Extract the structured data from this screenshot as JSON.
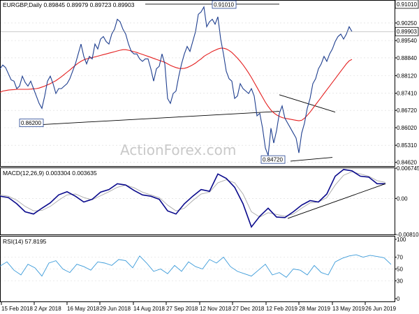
{
  "colors": {
    "price": "#1f3f8f",
    "ma": "#e41f1f",
    "trendline": "#000000",
    "macd": "#0a0a8c",
    "signal": "#a8a8a8",
    "macd_trendline": "#000000",
    "rsi": "#3a9ad9",
    "grid": "#d9d9d9",
    "frame": "#000000",
    "watermark": "#c9c9c9"
  },
  "chart_data": [
    {
      "type": "line",
      "panel": "price",
      "symbol": "EURGBP",
      "timeframe": "Daily",
      "title": "EURGBP,Daily",
      "ohlc_values": [
        "0.89845",
        "0.89979",
        "0.89723",
        "0.89903"
      ],
      "current_price": 0.89903,
      "current_price_label": "0.89903",
      "watermark": "ActionForex.com",
      "ylim": [
        0.8447,
        0.9115
      ],
      "y_ticks": [
        0.8462,
        0.8531,
        0.8602,
        0.8672,
        0.8741,
        0.8812,
        0.8884,
        0.8954,
        0.9025
      ],
      "y_tick_labels": [
        "0.84620",
        "0.85310",
        "0.86020",
        "0.86720",
        "0.87410",
        "0.88120",
        "0.88840",
        "0.89540",
        "0.90250"
      ],
      "x": [
        0,
        4,
        8,
        12,
        16,
        20,
        24,
        28,
        32,
        36,
        40,
        44,
        48,
        52,
        56,
        60,
        64,
        68,
        72,
        76,
        80,
        84,
        88,
        92,
        96,
        100,
        104,
        108,
        112,
        116,
        120,
        124,
        128,
        132,
        136,
        140,
        144,
        148,
        152,
        156,
        160,
        164,
        168,
        172,
        176,
        180,
        184,
        188,
        192,
        196,
        200,
        204,
        208,
        212,
        216,
        220,
        224,
        228,
        232,
        236,
        240,
        244,
        248,
        252,
        256,
        260,
        264,
        268,
        272,
        276,
        280,
        284,
        288,
        292,
        296,
        300,
        304,
        308,
        312,
        316,
        320,
        324,
        328,
        332,
        336,
        340,
        344,
        348,
        352,
        356,
        360,
        364,
        368,
        372,
        376,
        380,
        384,
        388,
        392,
        396,
        400,
        404,
        408,
        412,
        416,
        420,
        424,
        428,
        432,
        436,
        440,
        444,
        448,
        452,
        456,
        460,
        464,
        468,
        472,
        476,
        480,
        484,
        488,
        492,
        496,
        500,
        504
      ],
      "close": [
        0.884,
        0.8855,
        0.8845,
        0.882,
        0.8795,
        0.879,
        0.876,
        0.877,
        0.881,
        0.8785,
        0.877,
        0.879,
        0.876,
        0.873,
        0.87,
        0.868,
        0.873,
        0.879,
        0.881,
        0.878,
        0.874,
        0.876,
        0.876,
        0.877,
        0.878,
        0.88,
        0.883,
        0.886,
        0.89,
        0.894,
        0.889,
        0.886,
        0.889,
        0.888,
        0.894,
        0.892,
        0.896,
        0.897,
        0.895,
        0.894,
        0.898,
        0.9,
        0.904,
        0.903,
        0.9,
        0.898,
        0.894,
        0.891,
        0.89,
        0.89,
        0.888,
        0.887,
        0.888,
        0.888,
        0.884,
        0.879,
        0.884,
        0.885,
        0.89,
        0.886,
        0.872,
        0.87,
        0.874,
        0.875,
        0.881,
        0.886,
        0.89,
        0.893,
        0.891,
        0.895,
        0.899,
        0.906,
        0.907,
        0.909,
        0.901,
        0.903,
        0.904,
        0.902,
        0.905,
        0.896,
        0.89,
        0.883,
        0.88,
        0.879,
        0.872,
        0.873,
        0.878,
        0.876,
        0.875,
        0.874,
        0.876,
        0.873,
        0.865,
        0.866,
        0.86,
        0.852,
        0.849,
        0.86,
        0.854,
        0.859,
        0.866,
        0.869,
        0.864,
        0.862,
        0.86,
        0.858,
        0.856,
        0.85,
        0.858,
        0.862,
        0.868,
        0.872,
        0.878,
        0.88,
        0.884,
        0.886,
        0.889,
        0.887,
        0.89,
        0.892,
        0.895,
        0.897,
        0.898,
        0.896,
        0.898,
        0.901,
        0.899
      ],
      "ma": [
        0.8745,
        0.875,
        0.8752,
        0.8754,
        0.8755,
        0.8756,
        0.8757,
        0.8757,
        0.8757,
        0.8757,
        0.8757,
        0.8758,
        0.8759,
        0.876,
        0.8762,
        0.8766,
        0.877,
        0.8775,
        0.878,
        0.8786,
        0.8792,
        0.88,
        0.8808,
        0.8817,
        0.8826,
        0.8835,
        0.8845,
        0.8854,
        0.8863,
        0.887,
        0.8876,
        0.888,
        0.8883,
        0.8885,
        0.8888,
        0.8891,
        0.8894,
        0.8897,
        0.89,
        0.8903,
        0.8906,
        0.8909,
        0.8912,
        0.8915,
        0.8917,
        0.8917,
        0.8915,
        0.8912,
        0.8909,
        0.8906,
        0.8902,
        0.8898,
        0.8894,
        0.889,
        0.8886,
        0.8882,
        0.8878,
        0.8874,
        0.887,
        0.8866,
        0.886,
        0.8854,
        0.8849,
        0.8845,
        0.8842,
        0.8841,
        0.8842,
        0.8845,
        0.885,
        0.8856,
        0.8863,
        0.8872,
        0.888,
        0.889,
        0.8897,
        0.8903,
        0.891,
        0.8915,
        0.892,
        0.8923,
        0.8923,
        0.892,
        0.8914,
        0.8906,
        0.8895,
        0.8883,
        0.887,
        0.8856,
        0.884,
        0.8823,
        0.8805,
        0.8785,
        0.8765,
        0.8745,
        0.8725,
        0.8705,
        0.8688,
        0.8673,
        0.8662,
        0.8654,
        0.8648,
        0.8643,
        0.864,
        0.8638,
        0.8636,
        0.8634,
        0.8632,
        0.863,
        0.8632,
        0.864,
        0.8652,
        0.8665,
        0.868,
        0.8695,
        0.871,
        0.8725,
        0.874,
        0.8755,
        0.877,
        0.8785,
        0.88,
        0.8815,
        0.883,
        0.8845,
        0.886,
        0.8872,
        0.8878
      ],
      "annotations": [
        {
          "label": "0.91010",
          "value": 0.9101
        },
        {
          "label": "0.86200",
          "value": 0.862
        },
        {
          "label": "0.84720",
          "value": 0.8472
        }
      ],
      "lines": [
        {
          "kind": "support",
          "x": [
            62,
            400
          ],
          "y": [
            0.8615,
            0.8668
          ]
        },
        {
          "kind": "resistance",
          "x": [
            208,
            400
          ],
          "y": [
            0.9101,
            0.9101
          ]
        },
        {
          "kind": "triangle-upper",
          "x": [
            400,
            480
          ],
          "y": [
            0.8735,
            0.8665
          ]
        },
        {
          "kind": "triangle-lower",
          "x": [
            416,
            476
          ],
          "y": [
            0.8467,
            0.8482
          ]
        }
      ]
    },
    {
      "type": "line",
      "panel": "macd",
      "title": "MACD(12,26,9)",
      "values_label": [
        "0.003304",
        "0.003635"
      ],
      "y_tick_labels": [
        "0.006745",
        "0.00",
        "-0.008109"
      ],
      "ylim": [
        -0.0081,
        0.0068
      ],
      "zero_line": 0,
      "x": [
        0,
        12,
        24,
        36,
        48,
        60,
        72,
        84,
        96,
        108,
        120,
        132,
        144,
        156,
        168,
        180,
        192,
        204,
        216,
        228,
        240,
        252,
        264,
        276,
        288,
        300,
        312,
        324,
        336,
        348,
        360,
        372,
        384,
        396,
        408,
        420,
        432,
        444,
        456,
        468,
        480,
        492,
        504,
        516,
        528,
        540,
        552
      ],
      "macd": [
        0.0005,
        0.0002,
        -0.0012,
        -0.003,
        -0.0035,
        -0.0022,
        -0.001,
        0.0008,
        0.0015,
        0.0005,
        -0.0008,
        -0.0002,
        0.0014,
        0.002,
        0.0033,
        0.003,
        0.0018,
        0.0008,
        0.0005,
        -0.0002,
        -0.0028,
        -0.0035,
        -0.0012,
        0.0005,
        0.002,
        0.0016,
        0.0055,
        0.0045,
        0.0025,
        -0.0012,
        -0.0064,
        -0.004,
        -0.0022,
        -0.0042,
        -0.0043,
        -0.003,
        -0.0015,
        -0.0005,
        -0.0008,
        0.001,
        0.005,
        0.0065,
        0.0062,
        0.005,
        0.0048,
        0.0033,
        0.0033
      ],
      "signal": [
        0.0008,
        0.0005,
        -0.0004,
        -0.0018,
        -0.0028,
        -0.0027,
        -0.0018,
        -0.0004,
        0.0008,
        0.001,
        0.0002,
        -0.0003,
        0.0006,
        0.0015,
        0.0025,
        0.003,
        0.0024,
        0.0014,
        0.0008,
        0.0002,
        -0.0015,
        -0.0028,
        -0.0022,
        -0.0005,
        0.001,
        0.0014,
        0.0035,
        0.0042,
        0.0035,
        0.001,
        -0.003,
        -0.0042,
        -0.0032,
        -0.0036,
        -0.004,
        -0.0035,
        -0.0022,
        -0.001,
        -0.0008,
        0.0002,
        0.003,
        0.0052,
        0.006,
        0.0055,
        0.005,
        0.004,
        0.0036
      ],
      "lines": [
        {
          "kind": "trendline",
          "x": [
            412,
            552
          ],
          "y": [
            -0.0045,
            0.0033
          ]
        }
      ]
    },
    {
      "type": "line",
      "panel": "rsi",
      "title": "RSI(14)",
      "value_label": "57.8195",
      "y_tick_labels": [
        "100",
        "70",
        "50",
        "30",
        "0"
      ],
      "ylim": [
        0,
        100
      ],
      "levels": [
        70,
        50,
        30
      ],
      "x": [
        0,
        10,
        20,
        30,
        40,
        50,
        60,
        70,
        80,
        90,
        100,
        110,
        120,
        130,
        140,
        150,
        160,
        170,
        180,
        190,
        200,
        210,
        220,
        230,
        240,
        250,
        260,
        270,
        280,
        290,
        300,
        310,
        320,
        330,
        340,
        350,
        360,
        370,
        380,
        390,
        400,
        410,
        420,
        430,
        440,
        450,
        460,
        470,
        480,
        490,
        500,
        510,
        520,
        530,
        540,
        550,
        560
      ],
      "values": [
        55,
        62,
        48,
        40,
        58,
        52,
        38,
        60,
        64,
        50,
        44,
        58,
        54,
        48,
        62,
        60,
        56,
        66,
        64,
        52,
        72,
        60,
        46,
        50,
        42,
        56,
        46,
        62,
        54,
        50,
        66,
        60,
        70,
        54,
        46,
        42,
        38,
        48,
        58,
        40,
        44,
        36,
        50,
        48,
        40,
        56,
        44,
        40,
        62,
        68,
        72,
        74,
        70,
        73,
        71,
        69,
        57.8
      ]
    }
  ],
  "x_axis": {
    "labels": [
      "15 Feb 2018",
      "2 Apr 2018",
      "16 May 2018",
      "29 Jun 2018",
      "14 Aug 2018",
      "27 Sep 2018",
      "12 Nov 2018",
      "27 Dec 2018",
      "12 Feb 2019",
      "28 Mar 2019",
      "13 May 2019",
      "26 Jun 2019"
    ]
  }
}
